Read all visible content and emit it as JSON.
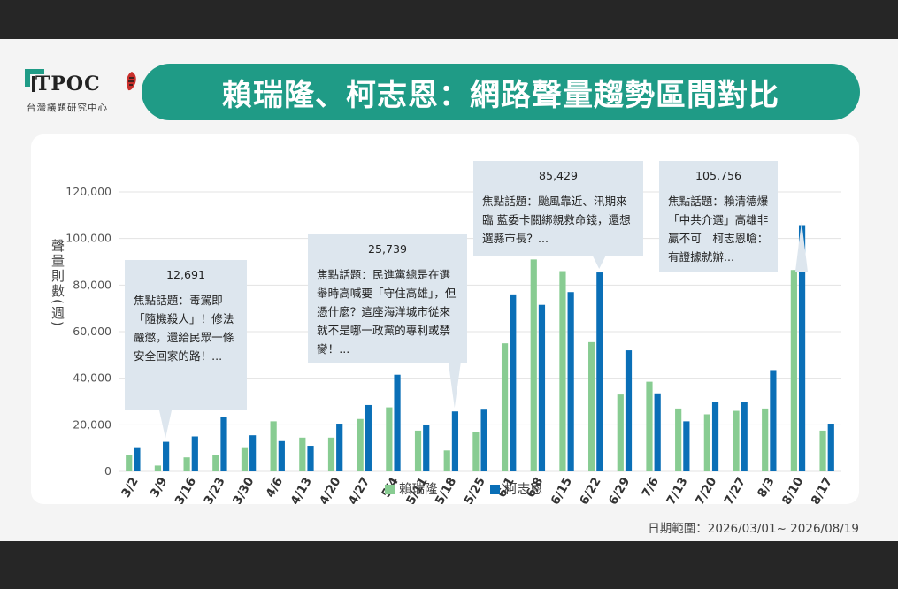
{
  "header": {
    "brand": "TPOC",
    "brand_sub": "台灣議題研究中心",
    "title": "賴瑞隆、柯志恩：網路聲量趨勢區間對比"
  },
  "colors": {
    "teal": "#1f9b86",
    "series_green": "#88cc92",
    "series_blue": "#0a6fb7",
    "callout_bg": "#dde6ee"
  },
  "callouts": [
    {
      "value": "12,691",
      "text": "焦點話題：毒駕即「隨機殺人」！修法嚴懲，還給民眾一條安全回家的路！..."
    },
    {
      "value": "25,739",
      "text": "焦點話題：民進黨總是在選舉時高喊要「守住高雄」，但憑什麼？這座海洋城市從來就不是哪一政黨的專利或禁臠！..."
    },
    {
      "value": "85,429",
      "text": "焦點話題：颱風靠近、汛期來臨 藍委卡關綁親救命錢，還想選縣市長？..."
    },
    {
      "value": "105,756",
      "text": "焦點話題：賴清德爆「中共介選」高雄非贏不可　柯志恩嗆：有證據就辦..."
    }
  ],
  "footer": {
    "date_range": "日期範圍：2026/03/01~ 2026/08/19"
  },
  "chart_data": {
    "type": "bar",
    "ylabel": "聲量則數(週)",
    "ylim": [
      0,
      120000
    ],
    "yticks": [
      0,
      20000,
      40000,
      60000,
      80000,
      100000,
      120000
    ],
    "ytick_labels": [
      "0",
      "20,000",
      "40,000",
      "60,000",
      "80,000",
      "100,000",
      "120,000"
    ],
    "grid": true,
    "legend_position": "bottom-center",
    "categories": [
      "3/2",
      "3/9",
      "3/16",
      "3/23",
      "3/30",
      "4/6",
      "4/13",
      "4/20",
      "4/27",
      "5/4",
      "5/11",
      "5/18",
      "5/25",
      "6/1",
      "6/8",
      "6/15",
      "6/22",
      "6/29",
      "7/6",
      "7/13",
      "7/20",
      "7/27",
      "8/3",
      "8/10",
      "8/17"
    ],
    "series": [
      {
        "name": "賴瑞隆",
        "color": "#88cc92",
        "values": [
          7000,
          2500,
          6000,
          7000,
          10000,
          21500,
          14500,
          14500,
          22500,
          27500,
          17500,
          9000,
          17000,
          55000,
          91000,
          86000,
          55500,
          33000,
          38500,
          27000,
          24500,
          26000,
          27000,
          86500,
          17500
        ]
      },
      {
        "name": "柯志恩",
        "color": "#0a6fb7",
        "values": [
          10000,
          12691,
          15000,
          23500,
          15500,
          13000,
          11000,
          20500,
          28500,
          41500,
          20000,
          25739,
          26500,
          76000,
          71500,
          77000,
          85429,
          52000,
          33500,
          21500,
          30000,
          30000,
          43500,
          105756,
          20500
        ]
      }
    ]
  }
}
